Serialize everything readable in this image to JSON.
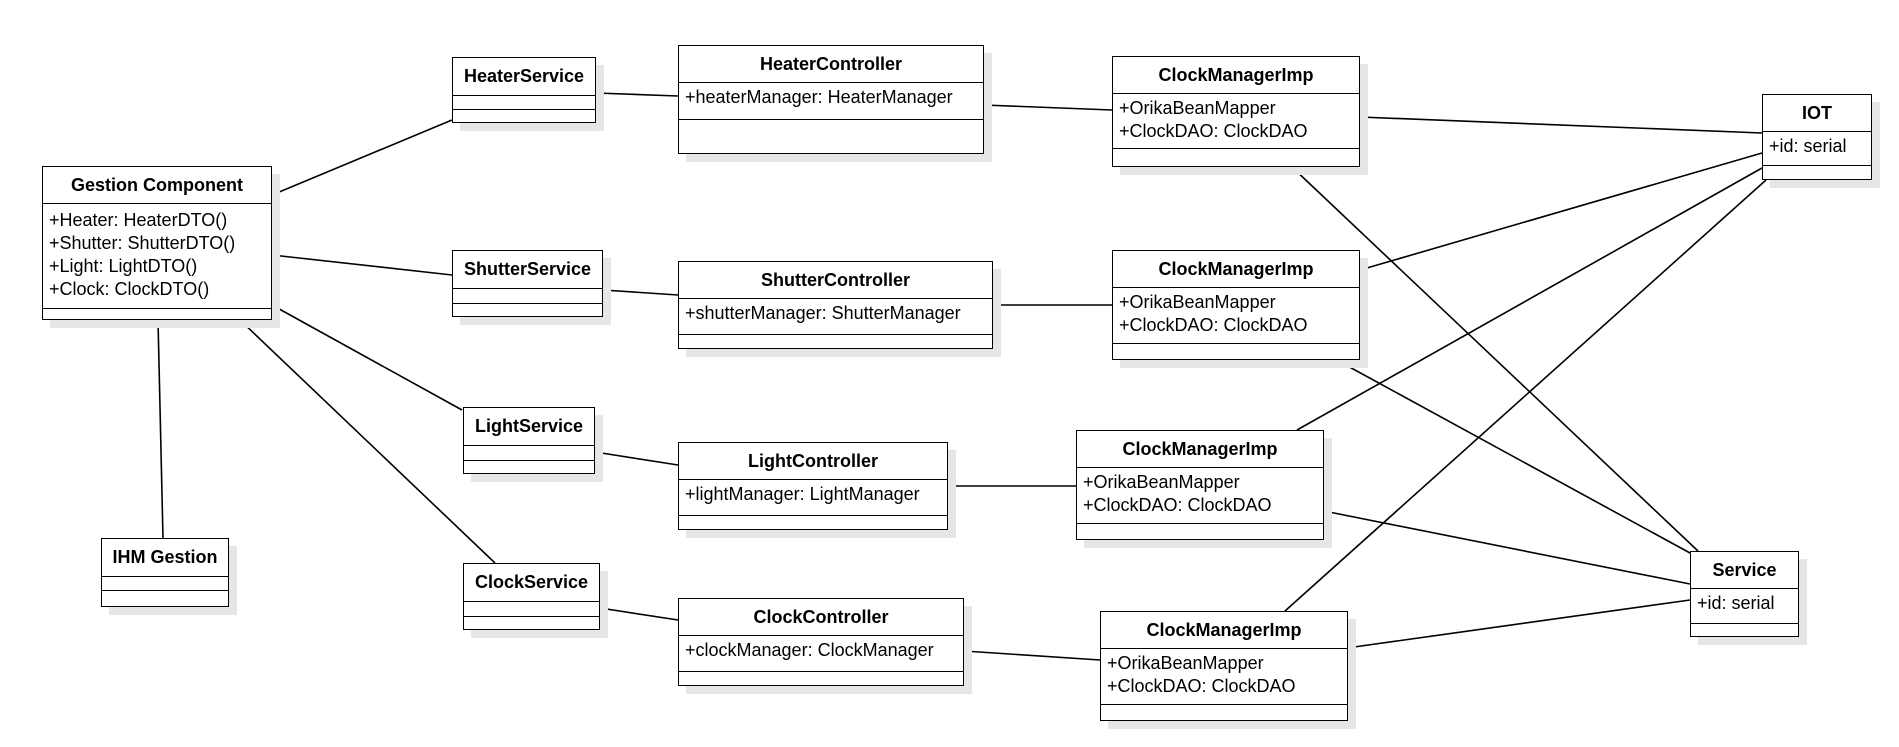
{
  "classes": {
    "gestion": {
      "name": "Gestion Component",
      "attrs": [
        "+Heater: HeaterDTO()",
        "+Shutter: ShutterDTO()",
        "+Light: LightDTO()",
        "+Clock: ClockDTO()"
      ]
    },
    "ihm": {
      "name": "IHM Gestion",
      "attrs": []
    },
    "heater_service": {
      "name": "HeaterService",
      "attrs": []
    },
    "shutter_service": {
      "name": "ShutterService",
      "attrs": []
    },
    "light_service": {
      "name": "LightService",
      "attrs": []
    },
    "clock_service": {
      "name": "ClockService",
      "attrs": []
    },
    "heater_controller": {
      "name": "HeaterController",
      "attrs": [
        "+heaterManager: HeaterManager"
      ]
    },
    "shutter_controller": {
      "name": "ShutterController",
      "attrs": [
        "+shutterManager: ShutterManager"
      ]
    },
    "light_controller": {
      "name": "LightController",
      "attrs": [
        "+lightManager: LightManager"
      ]
    },
    "clock_controller": {
      "name": "ClockController",
      "attrs": [
        "+clockManager: ClockManager"
      ]
    },
    "clock_manager_1": {
      "name": "ClockManagerImp",
      "attrs": [
        "+OrikaBeanMapper",
        "+ClockDAO: ClockDAO"
      ]
    },
    "clock_manager_2": {
      "name": "ClockManagerImp",
      "attrs": [
        "+OrikaBeanMapper",
        "+ClockDAO: ClockDAO"
      ]
    },
    "clock_manager_3": {
      "name": "ClockManagerImp",
      "attrs": [
        "+OrikaBeanMapper",
        "+ClockDAO: ClockDAO"
      ]
    },
    "clock_manager_4": {
      "name": "ClockManagerImp",
      "attrs": [
        "+OrikaBeanMapper",
        "+ClockDAO: ClockDAO"
      ]
    },
    "iot": {
      "name": "IOT",
      "attrs": [
        "+id: serial"
      ]
    },
    "service": {
      "name": "Service",
      "attrs": [
        "+id: serial"
      ]
    }
  }
}
